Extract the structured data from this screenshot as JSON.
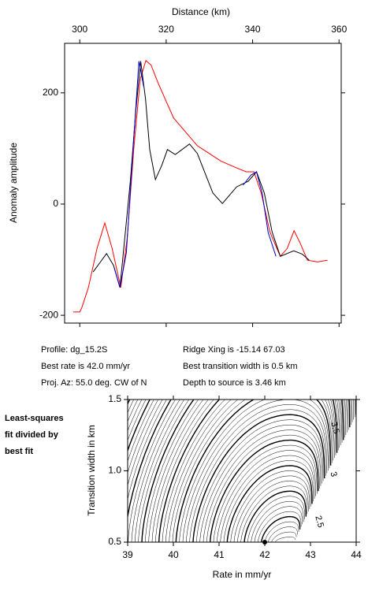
{
  "chart_data": [
    {
      "type": "line",
      "x_label": "Distance (km)",
      "y_label": "Anomaly amplitude",
      "xlim": [
        296.5,
        360.5
      ],
      "xticks": [
        300,
        320,
        340,
        360
      ],
      "ylim": [
        -214,
        289
      ],
      "yticks": [
        -200,
        0,
        200
      ],
      "series": [
        {
          "color": "#ff0000",
          "x": [
            298.5,
            300,
            300.5,
            302,
            304,
            305.8,
            307.5,
            309.5,
            311,
            312.5,
            314,
            315.3,
            316.5,
            318.1,
            321.7,
            327.2,
            332.7,
            336.3,
            338.5,
            340.3,
            342,
            344,
            346.4,
            348,
            349.6,
            351,
            352.7,
            355,
            357.3
          ],
          "values": [
            -194,
            -194,
            -186,
            -150,
            -80,
            -34,
            -80,
            -150,
            -60,
            100,
            225,
            258,
            250,
            218,
            155,
            105,
            77,
            65,
            58,
            58,
            20,
            -50,
            -94,
            -80,
            -48,
            -70,
            -101,
            -104,
            -101
          ]
        },
        {
          "color": "#000000",
          "x": [
            303.1,
            306.2,
            307.8,
            309.3,
            311.7,
            313,
            314.1,
            315.2,
            316.2,
            317.5,
            319,
            320.3,
            322.1,
            325.4,
            327.2,
            330.8,
            333,
            336.3,
            339,
            340.9,
            342.7,
            344.5,
            346.4,
            349.5,
            351.5,
            353.1
          ],
          "values": [
            -122,
            -89,
            -110,
            -150,
            41,
            170,
            257,
            190,
            98,
            44,
            70,
            98,
            89,
            108,
            91,
            20,
            1,
            31,
            41,
            58,
            20,
            -50,
            -94,
            -84,
            -90,
            -101
          ]
        },
        {
          "color": "#0000cc",
          "x": [
            308,
            309.3,
            310.8,
            312.2,
            313.7,
            314.8,
            null,
            337.8,
            339.6,
            340.9,
            342.2,
            343.6,
            345.4
          ],
          "values": [
            -115,
            -150,
            -87,
            84,
            257,
            211,
            null,
            34,
            52,
            58,
            20,
            -51,
            -94
          ]
        }
      ],
      "annotations": [
        "Profile: dg_15.2S",
        "Best rate is 42.0 mm/yr",
        "Proj. Az: 55.0 deg. CW of N",
        "Ridge Xing is -15.14 67.03",
        "Best transition width is 0.5 km",
        "Depth to source is   3.46 km"
      ]
    },
    {
      "type": "contour",
      "x_label": "Rate in mm/yr",
      "y_label": "Transition width in km",
      "xlim": [
        39,
        44
      ],
      "xticks": [
        39,
        40,
        41,
        42,
        43,
        44
      ],
      "ylim": [
        0.5,
        1.5
      ],
      "yticks": [
        0.5,
        {
          "value": 1,
          "label": "1.0"
        },
        1.5
      ],
      "contour_labels": [
        3.5,
        3,
        2.5
      ],
      "best_fit": {
        "x": 42,
        "y": 0.5
      },
      "note": [
        "Least-squares",
        "fit divided by",
        "best fit"
      ]
    }
  ]
}
